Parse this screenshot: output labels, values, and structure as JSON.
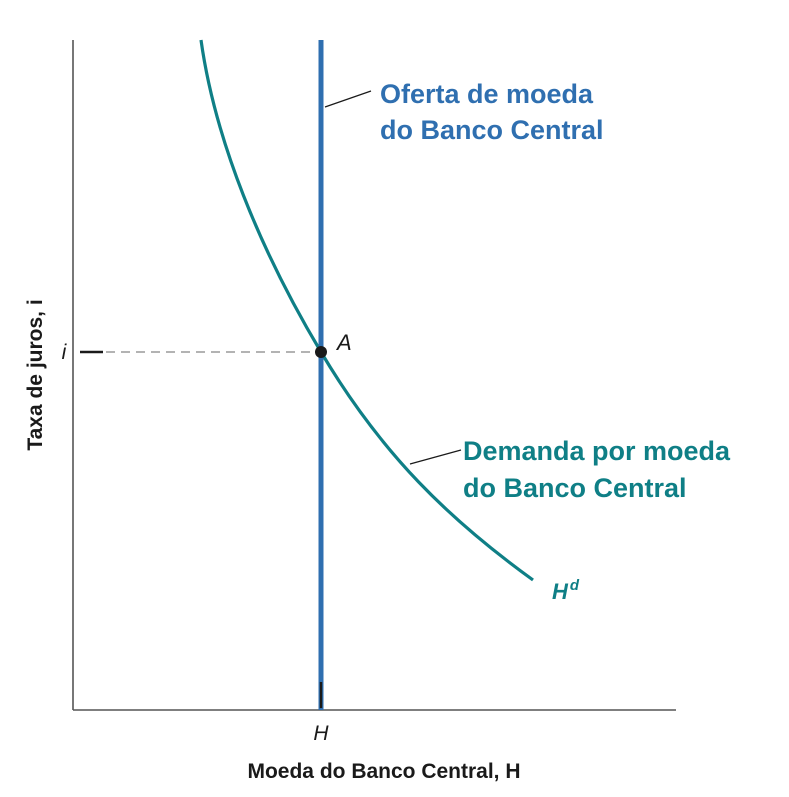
{
  "colors": {
    "supply": "#2f6fb0",
    "demand": "#0f7f86",
    "axis": "#555555",
    "guide": "#9a9a9a",
    "point": "#1a1a1a"
  },
  "axes": {
    "y_title": "Taxa de juros, i",
    "x_title": "Moeda do Banco Central, H",
    "y_tick": "i",
    "x_tick": "H"
  },
  "supply": {
    "label_line1": "Oferta de moeda",
    "label_line2": "do Banco Central"
  },
  "demand": {
    "label_line1": "Demanda por moeda",
    "label_line2": "do Banco Central",
    "curve_name": "H",
    "curve_name_sup": "d"
  },
  "equilibrium": {
    "label": "A"
  }
}
